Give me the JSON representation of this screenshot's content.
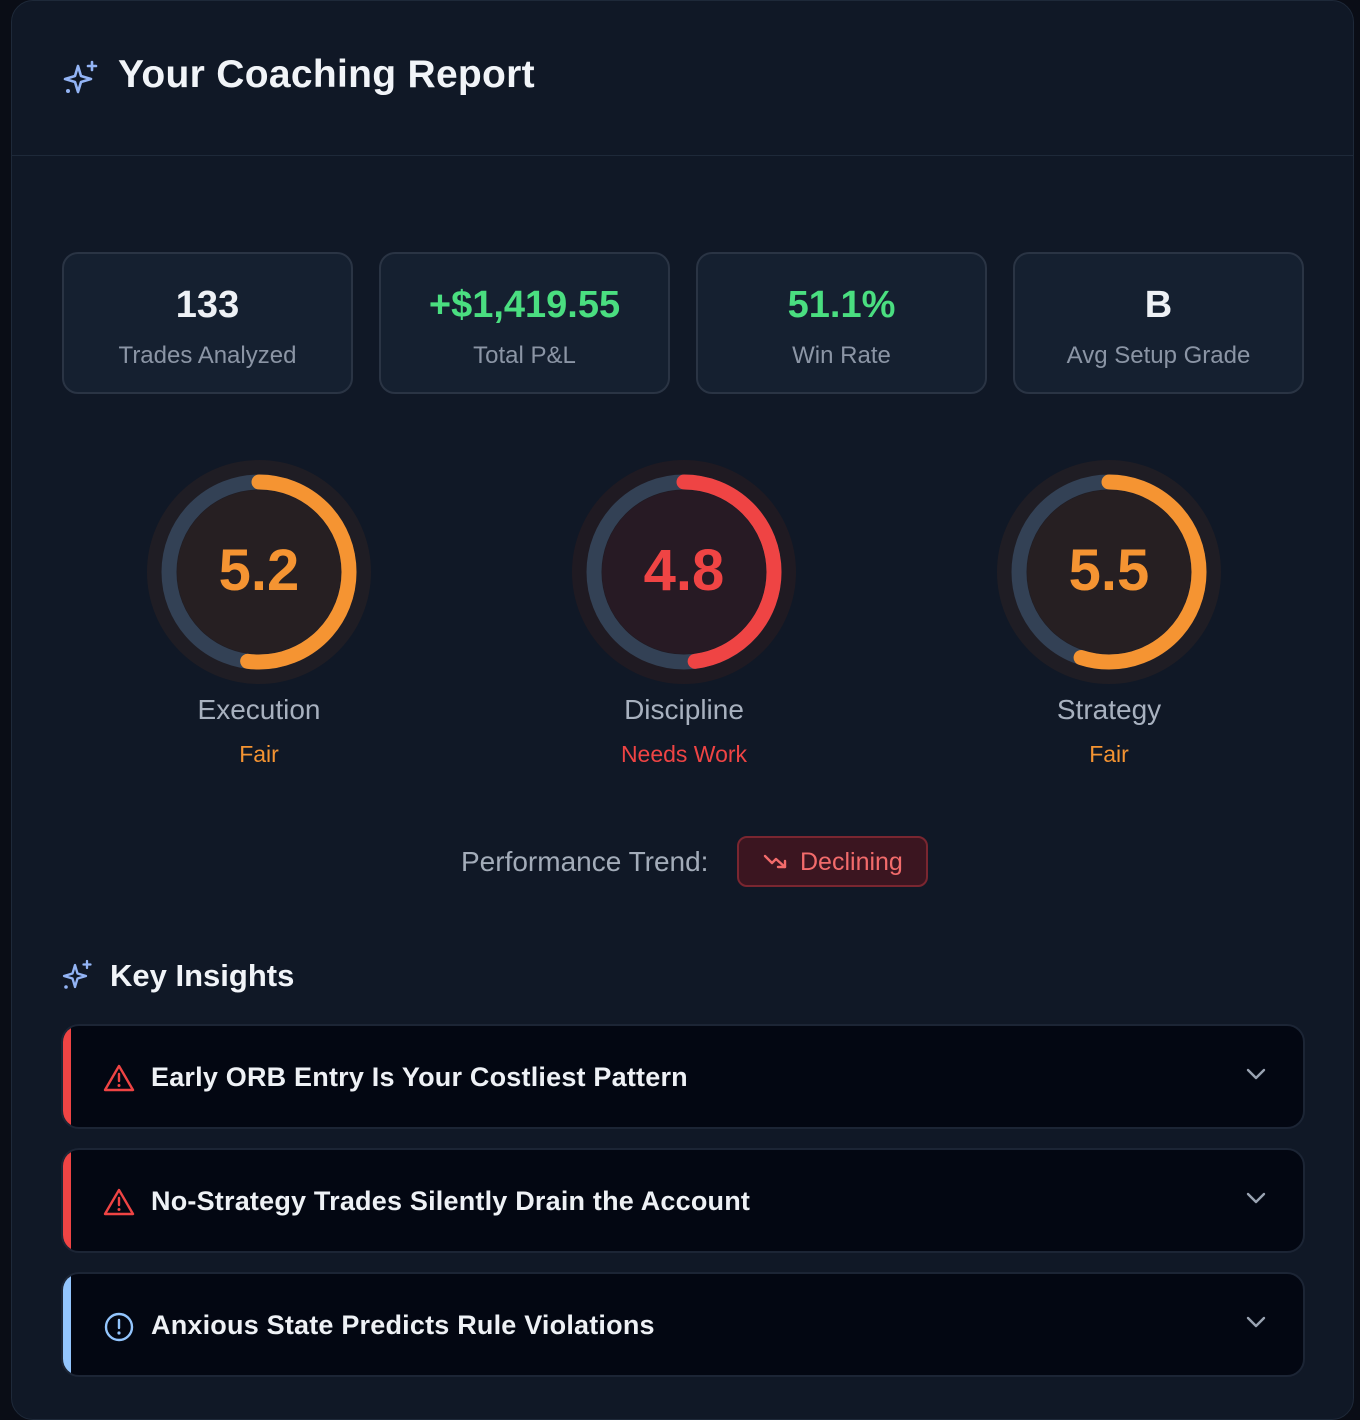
{
  "header": {
    "title": "Your Coaching Report",
    "icon": "sparkles-icon"
  },
  "stats": [
    {
      "value": "133",
      "label": "Trades Analyzed",
      "color": "#eef1f5"
    },
    {
      "value": "+$1,419.55",
      "label": "Total P&L",
      "color": "#4ade80"
    },
    {
      "value": "51.1%",
      "label": "Win Rate",
      "color": "#4ade80"
    },
    {
      "value": "B",
      "label": "Avg Setup Grade",
      "color": "#eef1f5"
    }
  ],
  "scores": [
    {
      "value": "5.2",
      "score": 5.2,
      "max": 10,
      "label": "Execution",
      "status": "Fair",
      "color": "#f59432"
    },
    {
      "value": "4.8",
      "score": 4.8,
      "max": 10,
      "label": "Discipline",
      "status": "Needs Work",
      "color": "#ef4444"
    },
    {
      "value": "5.5",
      "score": 5.5,
      "max": 10,
      "label": "Strategy",
      "status": "Fair",
      "color": "#f59432"
    }
  ],
  "trend": {
    "label": "Performance Trend:",
    "value": "Declining",
    "icon": "trending-down-icon",
    "color": "#f26b6b"
  },
  "insights": {
    "title": "Key Insights",
    "icon": "sparkles-icon",
    "items": [
      {
        "title": "Early ORB Entry Is Your Costliest Pattern",
        "icon": "warning-triangle-icon",
        "accent": "#ef4444"
      },
      {
        "title": "No-Strategy Trades Silently Drain the Account",
        "icon": "warning-triangle-icon",
        "accent": "#ef4444"
      },
      {
        "title": "Anxious State Predicts Rule Violations",
        "icon": "info-circle-icon",
        "accent": "#93c5fd"
      }
    ]
  }
}
